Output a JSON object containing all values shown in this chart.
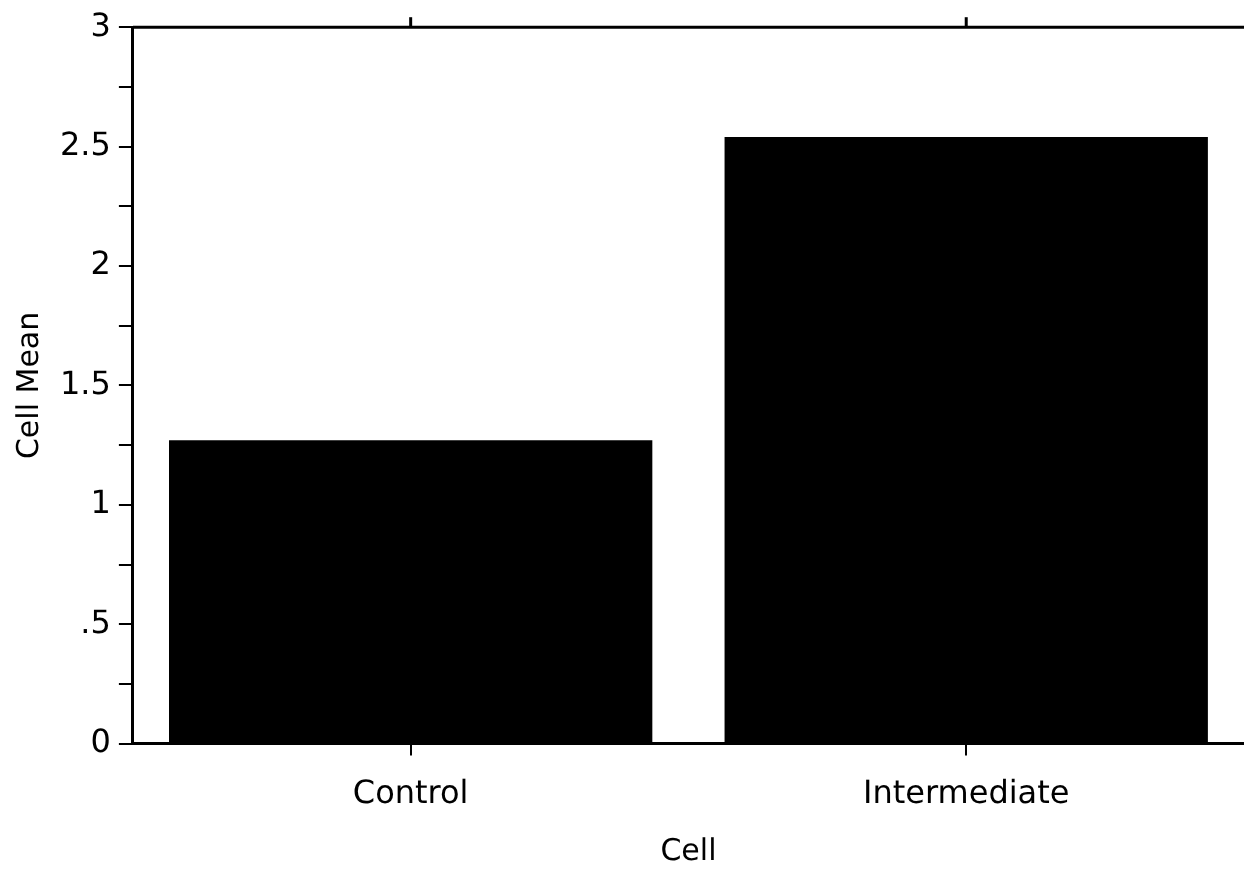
{
  "chart_data": {
    "type": "bar",
    "xlabel": "Cell",
    "ylabel": "Cell Mean",
    "categories": [
      "Control",
      "Intermediate"
    ],
    "values": [
      1.27,
      2.54
    ],
    "color": "#000000",
    "ylim": [
      0,
      3
    ],
    "yticks": [
      0,
      {
        "value": 0.25,
        "label": null
      },
      {
        "value": 0.5,
        "label": ".5"
      },
      {
        "value": 0.75,
        "label": null
      },
      1,
      {
        "value": 1.25,
        "label": null
      },
      1.5,
      {
        "value": 1.75,
        "label": null
      },
      2,
      {
        "value": 2.25,
        "label": null
      },
      2.5,
      {
        "value": 2.75,
        "label": null
      },
      3
    ],
    "grid": false,
    "legend": false
  }
}
